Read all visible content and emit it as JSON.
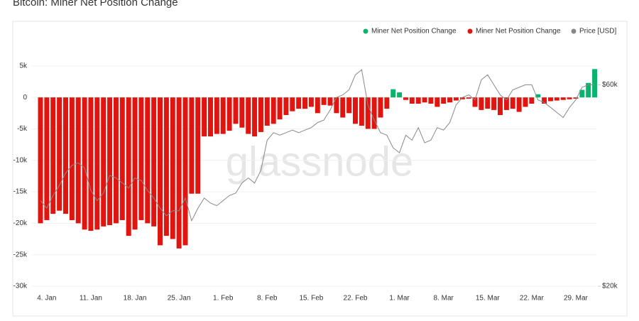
{
  "chart_data": {
    "type": "bar",
    "title": "Bitcoin: Miner Net Position Change",
    "watermark": "glassnode",
    "categories": [
      null,
      "4. Jan",
      null,
      null,
      null,
      null,
      null,
      null,
      "11. Jan",
      null,
      null,
      null,
      null,
      null,
      null,
      "18. Jan",
      null,
      null,
      null,
      null,
      null,
      null,
      "25. Jan",
      null,
      null,
      null,
      null,
      null,
      null,
      "1. Feb",
      null,
      null,
      null,
      null,
      null,
      null,
      "8. Feb",
      null,
      null,
      null,
      null,
      null,
      null,
      "15. Feb",
      null,
      null,
      null,
      null,
      null,
      null,
      "22. Feb",
      null,
      null,
      null,
      null,
      null,
      null,
      "1. Mar",
      null,
      null,
      null,
      null,
      null,
      null,
      "8. Mar",
      null,
      null,
      null,
      null,
      null,
      null,
      "15. Mar",
      null,
      null,
      null,
      null,
      null,
      null,
      "22. Mar",
      null,
      null,
      null,
      null,
      null,
      null,
      "29. Mar",
      null,
      null,
      null
    ],
    "series": [
      {
        "name": "Miner Net Position Change",
        "color": "#0ab36d",
        "values": [
          null,
          null,
          null,
          null,
          null,
          null,
          null,
          null,
          null,
          null,
          null,
          null,
          null,
          null,
          null,
          null,
          null,
          null,
          null,
          null,
          null,
          null,
          null,
          null,
          null,
          null,
          null,
          null,
          null,
          null,
          null,
          null,
          null,
          null,
          null,
          null,
          null,
          null,
          null,
          null,
          null,
          null,
          null,
          null,
          null,
          null,
          null,
          null,
          null,
          null,
          null,
          null,
          null,
          null,
          null,
          null,
          1300,
          800,
          null,
          null,
          null,
          null,
          null,
          null,
          null,
          null,
          null,
          null,
          null,
          null,
          null,
          null,
          null,
          null,
          null,
          null,
          null,
          null,
          null,
          500,
          null,
          null,
          null,
          null,
          null,
          null,
          1200,
          2300,
          4500
        ]
      },
      {
        "name": "Miner Net Position Change",
        "color": "#e0150f",
        "values": [
          -20000,
          -19500,
          -18500,
          -18000,
          -18500,
          -19500,
          -20000,
          -21000,
          -21200,
          -21000,
          -20500,
          -20300,
          -20000,
          -19500,
          -22000,
          -21000,
          -19500,
          -20000,
          -20500,
          -23500,
          -22000,
          -22500,
          -24000,
          -23500,
          -15300,
          -15300,
          -6200,
          -6200,
          -5800,
          -5800,
          -5300,
          -4200,
          -4800,
          -5800,
          -6200,
          -5500,
          -4500,
          -4200,
          -3500,
          -2800,
          -2200,
          -1800,
          -1800,
          -1500,
          -2500,
          -1200,
          -1300,
          -2500,
          -3200,
          -2500,
          -4200,
          -4500,
          -5000,
          -5000,
          -3200,
          -1800,
          null,
          null,
          -400,
          -1000,
          -1000,
          -800,
          -1000,
          -1500,
          -1000,
          -800,
          -500,
          -300,
          -200,
          -1500,
          -2000,
          -1800,
          -2000,
          -2800,
          -2000,
          -1800,
          -2300,
          -1500,
          -1000,
          null,
          -1000,
          -600,
          -500,
          -400,
          -300,
          -200,
          null,
          null,
          null
        ]
      },
      {
        "name": "Price [USD]",
        "color": "#888888",
        "type": "line",
        "axis": "y2",
        "values": [
          37000,
          35500,
          38000,
          40000,
          42500,
          44000,
          44500,
          43500,
          39000,
          37000,
          38500,
          42000,
          41500,
          40500,
          39500,
          41500,
          41000,
          39000,
          37500,
          35500,
          34000,
          35000,
          35000,
          37500,
          33000,
          35500,
          37500,
          36500,
          36000,
          37000,
          38000,
          38500,
          40500,
          41500,
          40500,
          43000,
          49000,
          50500,
          50000,
          50500,
          51000,
          50500,
          51000,
          51500,
          52500,
          53000,
          55000,
          57500,
          58000,
          59000,
          62000,
          63000,
          56000,
          53000,
          50500,
          50000,
          47500,
          46500,
          50000,
          49000,
          51500,
          48500,
          49000,
          51500,
          51000,
          52500,
          56000,
          57500,
          58000,
          57000,
          61000,
          62000,
          60000,
          58000,
          57000,
          59000,
          59500,
          60000,
          60000,
          57000,
          56500,
          55500,
          54500,
          53500,
          55500,
          57000,
          59500,
          60000,
          60000
        ]
      }
    ],
    "ylim": [
      -30000,
      6000
    ],
    "yticks": [
      {
        "value": 5000,
        "label": "5k"
      },
      0,
      {
        "value": -5000,
        "label": "-5k"
      },
      {
        "value": -10000,
        "label": "-10k"
      },
      {
        "value": -15000,
        "label": "-15k"
      },
      {
        "value": -20000,
        "label": "-20k"
      },
      {
        "value": -25000,
        "label": "-25k"
      },
      {
        "value": -30000,
        "label": "-30k"
      }
    ],
    "y2lim": [
      20000,
      65000
    ],
    "y2ticks": [
      {
        "value": 20000,
        "label": "$20k"
      },
      {
        "value": 60000,
        "label": "$60k"
      }
    ],
    "grid": true,
    "legend": "top-right"
  }
}
